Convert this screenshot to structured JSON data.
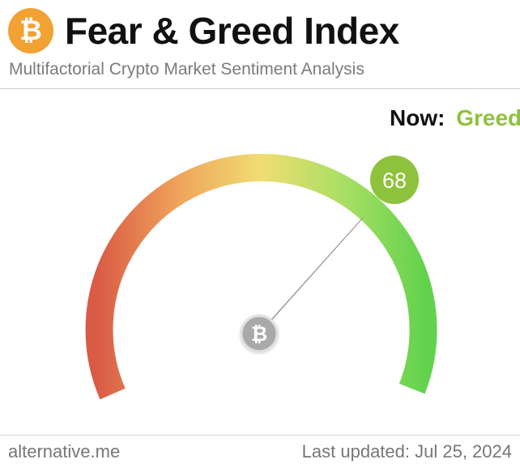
{
  "header": {
    "logo_glyph": "₿",
    "title": "Fear & Greed Index",
    "subtitle": "Multifactorial Crypto Market Sentiment Analysis"
  },
  "status": {
    "now_label": "Now:",
    "now_value": "Greed",
    "now_color": "#8ec23c"
  },
  "gauge": {
    "value": 68,
    "value_text": "68",
    "min": 0,
    "max": 100,
    "center_glyph": "₿",
    "colors": {
      "fear": "#d95b45",
      "mid": "#f0dd72",
      "greed": "#62d24d",
      "badge": "#8ec23c",
      "needle": "#a8a8a8"
    }
  },
  "footer": {
    "source": "alternative.me",
    "updated": "Last updated: Jul 25, 2024"
  }
}
